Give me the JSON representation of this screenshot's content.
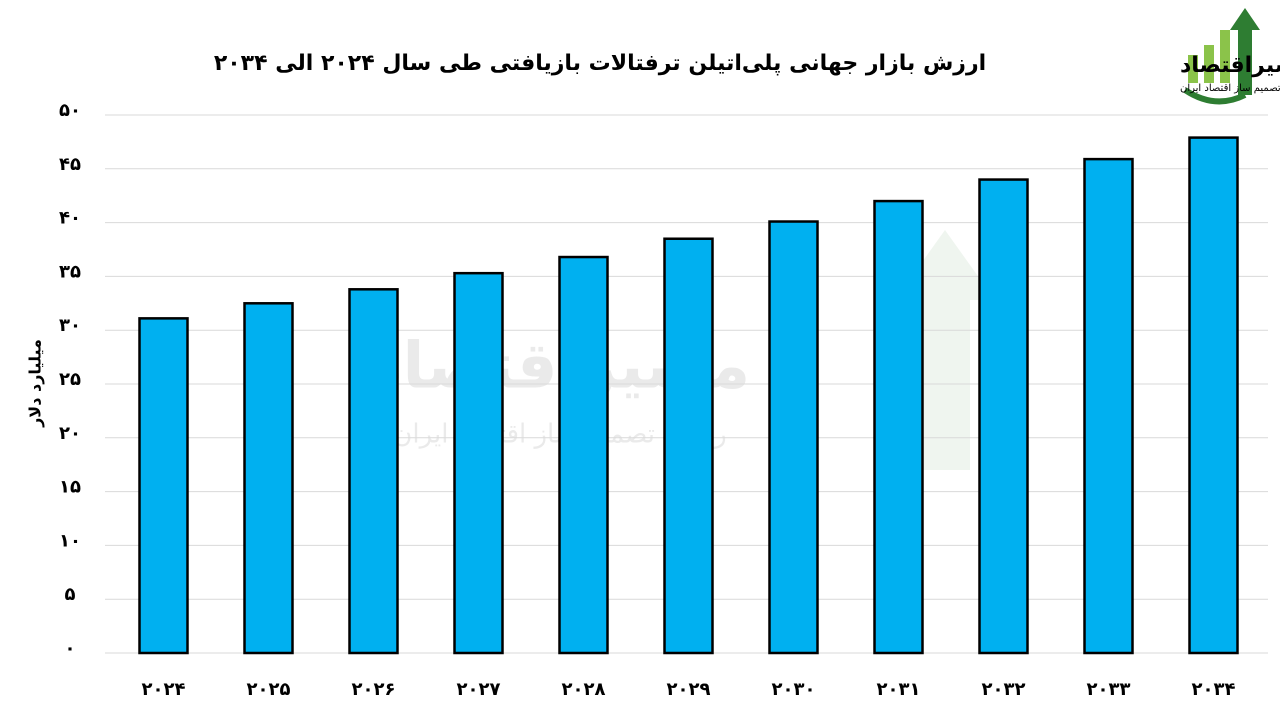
{
  "chart_data": {
    "type": "bar",
    "title": "ارزش بازار جهانی پلی‌اتیلن ترفتالات بازیافتی طی سال ۲۰۲۴ الی ۲۰۳۴",
    "y_label": "میلیارد دلار",
    "brand": "مسیراقتصاد",
    "brand_tagline": "رسانه تصمیم ساز اقتصاد ایران",
    "categories": [
      "۲۰۲۴",
      "۲۰۲۵",
      "۲۰۲۶",
      "۲۰۲۷",
      "۲۰۲۸",
      "۲۰۲۹",
      "۲۰۳۰",
      "۲۰۳۱",
      "۲۰۳۲",
      "۲۰۳۳",
      "۲۰۳۴"
    ],
    "values": [
      31.1,
      32.5,
      33.8,
      35.3,
      36.8,
      38.5,
      40.1,
      42.0,
      44.0,
      45.9,
      47.9
    ],
    "color": "#00b0f0",
    "ylim": [
      0,
      50
    ],
    "yticks": [
      {
        "value": 0,
        "label": "۰"
      },
      {
        "value": 5,
        "label": "۵"
      },
      {
        "value": 10,
        "label": "۱۰"
      },
      {
        "value": 15,
        "label": "۱۵"
      },
      {
        "value": 20,
        "label": "۲۰"
      },
      {
        "value": 25,
        "label": "۲۵"
      },
      {
        "value": 30,
        "label": "۳۰"
      },
      {
        "value": 35,
        "label": "۳۵"
      },
      {
        "value": 40,
        "label": "۴۰"
      },
      {
        "value": 45,
        "label": "۴۵"
      },
      {
        "value": 50,
        "label": "۵۰"
      }
    ],
    "grid": true
  }
}
